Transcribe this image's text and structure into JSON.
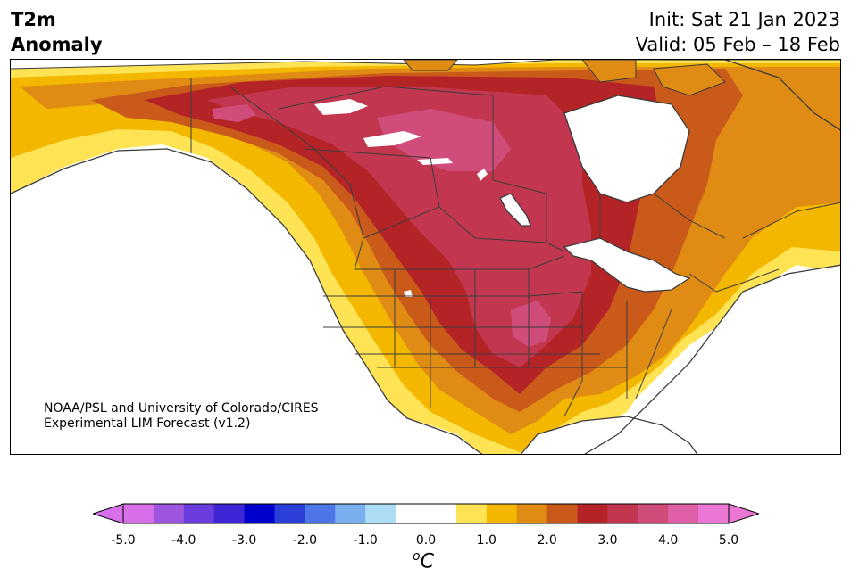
{
  "header": {
    "title_line1": "T2m",
    "title_line2": "Anomaly",
    "init": "Init: Sat 21 Jan 2023",
    "valid": "Valid: 05 Feb – 18 Feb"
  },
  "credit": {
    "line1": "NOAA/PSL and University of Colorado/CIRES",
    "line2": "Experimental LIM Forecast (v1.2)"
  },
  "colorbar": {
    "units_base": "C",
    "units_sup": "o",
    "ticks": [
      "-5.0",
      "-4.0",
      "-3.0",
      "-2.0",
      "-1.0",
      "0.0",
      "1.0",
      "2.0",
      "3.0",
      "4.0",
      "5.0"
    ],
    "colors": [
      "#d66fe8",
      "#9e55e0",
      "#6a3cdc",
      "#3e25d6",
      "#0000cc",
      "#2a3fd8",
      "#4f76e6",
      "#7aafef",
      "#addcf5",
      "#ffffff",
      "#ffffff",
      "#fee354",
      "#f3b700",
      "#e08c14",
      "#c95a1a",
      "#b42427",
      "#c2374f",
      "#d04c7a",
      "#de5fa6",
      "#eb77d4"
    ],
    "extend_low_color": "#d66fe8",
    "extend_high_color": "#eb77d4"
  },
  "map": {
    "region": "North America",
    "field": "2m temperature anomaly",
    "palette": {
      "yellow": "#fee354",
      "gold": "#f3b700",
      "orange": "#e08c14",
      "dark_orange": "#c95a1a",
      "red": "#b42427",
      "crimson": "#c2374f",
      "rose": "#d04c7a"
    }
  }
}
